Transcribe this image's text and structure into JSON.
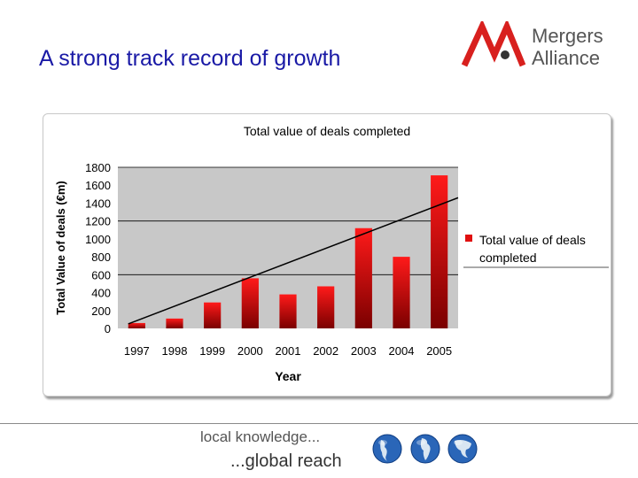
{
  "slide": {
    "title": "A strong track record of growth",
    "logo_line1": "Mergers",
    "logo_line2": "Alliance",
    "tagline_line1": "local knowledge...",
    "tagline_line2": "...global reach"
  },
  "colors": {
    "title": "#1a1aa6",
    "logo_red": "#d8201e",
    "logo_gray": "#555555",
    "bar_top": "#ff1a1a",
    "bar_bottom": "#7a0000",
    "plot_bg": "#c8c8c8"
  },
  "icons": [
    "globe-icon-americas",
    "globe-icon-europe-africa",
    "globe-icon-asia"
  ],
  "chart_data": {
    "type": "bar",
    "title": "Total value of deals completed",
    "xlabel": "Year",
    "ylabel": "Total Value of deals (€m)",
    "categories": [
      "1997",
      "1998",
      "1999",
      "2000",
      "2001",
      "2002",
      "2003",
      "2004",
      "2005"
    ],
    "series": [
      {
        "name": "Total value of deals completed",
        "values": [
          60,
          110,
          290,
          560,
          380,
          470,
          1120,
          800,
          1710
        ]
      }
    ],
    "trendline": {
      "start": 50,
      "end": 1460
    },
    "ylim": [
      0,
      1800
    ],
    "yticks": [
      0,
      200,
      400,
      600,
      800,
      1000,
      1200,
      1400,
      1600,
      1800
    ],
    "gridlines": [
      600,
      1200,
      1800
    ],
    "legend": {
      "position": "right",
      "label_line1": "Total value of deals",
      "label_line2": "completed"
    }
  }
}
